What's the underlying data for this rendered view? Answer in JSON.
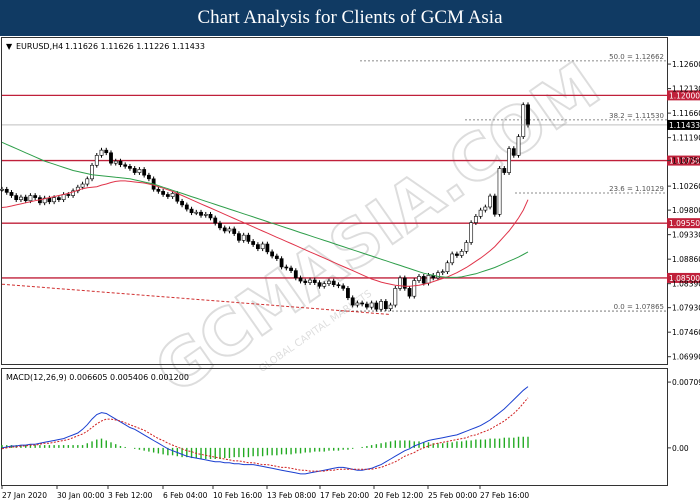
{
  "header": {
    "title": "Chart Analysis for Clients of GCM Asia"
  },
  "chart_data": {
    "type": "line",
    "symbol_label": "EURUSD,H4",
    "ohlc_text": "1.11626 1.11626 1.11226 1.11433",
    "current_price": 1.11433,
    "current_price_label": "1.11433",
    "ylim": [
      1.0685,
      1.131
    ],
    "y_ticks": [
      {
        "v": 1.12662,
        "label": ""
      },
      {
        "v": 1.126,
        "label": "1.12600"
      },
      {
        "v": 1.1213,
        "label": "1.12130"
      },
      {
        "v": 1.1166,
        "label": "1.11660"
      },
      {
        "v": 1.1153,
        "label": ""
      },
      {
        "v": 1.1119,
        "label": "1.11190"
      },
      {
        "v": 1.1075,
        "label": "1.10750"
      },
      {
        "v": 1.1026,
        "label": "1.10260"
      },
      {
        "v": 1.10129,
        "label": ""
      },
      {
        "v": 1.098,
        "label": "1.09800"
      },
      {
        "v": 1.0933,
        "label": "1.09330"
      },
      {
        "v": 1.0886,
        "label": "1.08860"
      },
      {
        "v": 1.0839,
        "label": "1.08390"
      },
      {
        "v": 1.0793,
        "label": "1.07930"
      },
      {
        "v": 1.07865,
        "label": ""
      },
      {
        "v": 1.0746,
        "label": "1.07460"
      },
      {
        "v": 1.0699,
        "label": "1.06990"
      }
    ],
    "x_labels": [
      "27 Jan 2020",
      "30 Jan 00:00",
      "3 Feb 12:00",
      "6 Feb 04:00",
      "10 Feb 16:00",
      "13 Feb 08:00",
      "17 Feb 20:00",
      "20 Feb 12:00",
      "25 Feb 00:00",
      "27 Feb 16:00"
    ],
    "horizontal_levels": [
      {
        "price": 1.12,
        "label": "1.12000",
        "kind": "resistance"
      },
      {
        "price": 1.1075,
        "label": "1.10750",
        "kind": "resistance"
      },
      {
        "price": 1.0955,
        "label": "1.09550",
        "kind": "support"
      },
      {
        "price": 1.085,
        "label": "1.08500",
        "kind": "support"
      }
    ],
    "fibonacci": [
      {
        "level": "50.0",
        "price": 1.12662,
        "label": "50.0 = 1.12662"
      },
      {
        "level": "38.2",
        "price": 1.1153,
        "label": "38.2 = 1.11530"
      },
      {
        "level": "23.6",
        "price": 1.10129,
        "label": "23.6 = 1.10129"
      },
      {
        "level": "0.0",
        "price": 1.07865,
        "label": "0.0 = 1.07865"
      }
    ],
    "series": [
      {
        "name": "",
        "kind": "close",
        "color": "#000000",
        "values": [
          1.102,
          1.1014,
          1.1008,
          1.1,
          1.1005,
          1.0998,
          1.1008,
          1.1004,
          1.0994,
          1.1003,
          1.0996,
          1.1004,
          1.1,
          1.101,
          1.1008,
          1.1017,
          1.1024,
          1.103,
          1.104,
          1.1066,
          1.1085,
          1.1095,
          1.109,
          1.107,
          1.1074,
          1.1067,
          1.1064,
          1.106,
          1.1052,
          1.1058,
          1.1047,
          1.104,
          1.102,
          1.1016,
          1.101,
          1.1006,
          1.1012,
          1.0997,
          1.099,
          1.0982,
          1.0975,
          1.0976,
          1.097,
          1.0972,
          1.0965,
          1.0955,
          1.0946,
          1.094,
          1.0944,
          1.0935,
          1.0922,
          1.0932,
          1.092,
          1.0914,
          1.0906,
          1.0915,
          1.09,
          1.0892,
          1.0887,
          1.0871,
          1.0869,
          1.0864,
          1.085,
          1.0844,
          1.0841,
          1.0846,
          1.0841,
          1.0834,
          1.0839,
          1.0844,
          1.0837,
          1.0835,
          1.083,
          1.0812,
          1.0798,
          1.0802,
          1.08,
          1.0794,
          1.0802,
          1.079,
          1.0805,
          1.0791,
          1.0798,
          1.083,
          1.085,
          1.083,
          1.0815,
          1.0845,
          1.0853,
          1.084,
          1.0855,
          1.085,
          1.086,
          1.0862,
          1.0879,
          1.0896,
          1.0893,
          1.0901,
          1.0918,
          1.0956,
          1.0968,
          1.098,
          1.0986,
          1.1007,
          1.0972,
          1.106,
          1.1052,
          1.1098,
          1.1085,
          1.1121,
          1.1182,
          1.1143
        ]
      },
      {
        "name": "",
        "kind": "ma_red",
        "color": "#e0344a",
        "values": [
          1.0985,
          1.0986,
          1.0988,
          1.099,
          1.0992,
          1.0994,
          1.0996,
          1.0998,
          1.1,
          1.1002,
          1.1004,
          1.1006,
          1.1008,
          1.101,
          1.1012,
          1.1015,
          1.1018,
          1.1021,
          1.1023,
          1.1024,
          1.1025,
          1.1028,
          1.103,
          1.1033,
          1.1035,
          1.1036,
          1.1036,
          1.1035,
          1.1034,
          1.1033,
          1.1032,
          1.103,
          1.1028,
          1.1025,
          1.1022,
          1.1019,
          1.1016,
          1.1012,
          1.1008,
          1.1004,
          1.1,
          1.0996,
          1.0992,
          1.0988,
          1.0984,
          1.098,
          1.0976,
          1.0972,
          1.0968,
          1.0964,
          1.096,
          1.0956,
          1.0952,
          1.0948,
          1.0944,
          1.094,
          1.0936,
          1.0932,
          1.0928,
          1.0924,
          1.092,
          1.0916,
          1.0912,
          1.0908,
          1.0904,
          1.09,
          1.0896,
          1.0892,
          1.0888,
          1.0884,
          1.088,
          1.0876,
          1.0872,
          1.0868,
          1.0864,
          1.086,
          1.0856,
          1.0852,
          1.0848,
          1.0845,
          1.0842,
          1.084,
          1.0838,
          1.0836,
          1.0835,
          1.0834,
          1.0834,
          1.0835,
          1.0836,
          1.0838,
          1.084,
          1.0843,
          1.0846,
          1.0849,
          1.0852,
          1.0856,
          1.086,
          1.0865,
          1.087,
          1.0876,
          1.0882,
          1.0888,
          1.0895,
          1.0902,
          1.091,
          1.092,
          1.093,
          1.094,
          1.0952,
          1.0965,
          1.098,
          1.1
        ]
      },
      {
        "name": "",
        "kind": "ma_green",
        "color": "#2e9e4a",
        "values": [
          1.111,
          1.1106,
          1.1102,
          1.1098,
          1.1094,
          1.109,
          1.1086,
          1.1082,
          1.1078,
          1.1074,
          1.1071,
          1.1068,
          1.1065,
          1.1062,
          1.1059,
          1.1056,
          1.1054,
          1.1052,
          1.105,
          1.1048,
          1.1047,
          1.1046,
          1.1045,
          1.1044,
          1.1043,
          1.1042,
          1.1041,
          1.104,
          1.1038,
          1.1036,
          1.1034,
          1.1032,
          1.103,
          1.1027,
          1.1024,
          1.1021,
          1.1018,
          1.1015,
          1.1012,
          1.1009,
          1.1006,
          1.1003,
          1.1,
          1.0997,
          1.0994,
          1.0991,
          1.0988,
          1.0985,
          1.0982,
          1.0979,
          1.0976,
          1.0973,
          1.097,
          1.0967,
          1.0964,
          1.0961,
          1.0958,
          1.0955,
          1.0952,
          1.0949,
          1.0946,
          1.0943,
          1.094,
          1.0937,
          1.0934,
          1.0931,
          1.0928,
          1.0925,
          1.0922,
          1.0919,
          1.0916,
          1.0913,
          1.091,
          1.0907,
          1.0904,
          1.0901,
          1.0898,
          1.0895,
          1.0892,
          1.0889,
          1.0886,
          1.0883,
          1.088,
          1.0877,
          1.0874,
          1.0871,
          1.0868,
          1.0865,
          1.0862,
          1.0859,
          1.0857,
          1.0855,
          1.0853,
          1.0852,
          1.0851,
          1.0851,
          1.0851,
          1.0852,
          1.0854,
          1.0856,
          1.0858,
          1.0861,
          1.0864,
          1.0867,
          1.087,
          1.0874,
          1.0878,
          1.0882,
          1.0886,
          1.089,
          1.0895,
          1.09
        ]
      },
      {
        "name": "",
        "kind": "trendline",
        "color": "#d03030",
        "dashed": true,
        "values": [
          1.0838,
          1.078
        ]
      }
    ],
    "macd": {
      "label": "MACD(12,26,9) 0.006605 0.005406 0.001200",
      "ylim": [
        -0.004,
        0.0085
      ],
      "y_ticks": [
        {
          "v": 0.00709,
          "label": "0.00709"
        },
        {
          "v": 0.0,
          "label": "0.00"
        }
      ],
      "histogram": [
        0.0003,
        0.0003,
        0.0003,
        0.0003,
        0.0003,
        0.0003,
        0.0003,
        0.0003,
        0.0003,
        0.0003,
        0.0003,
        0.0003,
        0.0003,
        0.0003,
        0.0003,
        0.0003,
        0.0003,
        0.0003,
        0.0005,
        0.0007,
        0.0009,
        0.001,
        0.0008,
        0.0006,
        0.0004,
        0.0002,
        0.0001,
        0.0,
        -0.0001,
        -0.0002,
        -0.0003,
        -0.0004,
        -0.0005,
        -0.0006,
        -0.0007,
        -0.0008,
        -0.0008,
        -0.0009,
        -0.001,
        -0.001,
        -0.0011,
        -0.0011,
        -0.0012,
        -0.0012,
        -0.0012,
        -0.0012,
        -0.0012,
        -0.0011,
        -0.0011,
        -0.001,
        -0.001,
        -0.001,
        -0.001,
        -0.0009,
        -0.0009,
        -0.0009,
        -0.0008,
        -0.0008,
        -0.0008,
        -0.0007,
        -0.0007,
        -0.0007,
        -0.0006,
        -0.0006,
        -0.0005,
        -0.0005,
        -0.0004,
        -0.0004,
        -0.0004,
        -0.0003,
        -0.0003,
        -0.0003,
        -0.0002,
        -0.0002,
        -0.0001,
        0.0,
        0.0001,
        0.0002,
        0.0003,
        0.0004,
        0.0005,
        0.0006,
        0.0007,
        0.0008,
        0.0008,
        0.0008,
        0.0008,
        0.0007,
        0.0007,
        0.0006,
        0.0006,
        0.0005,
        0.0005,
        0.0005,
        0.0006,
        0.0006,
        0.0007,
        0.0007,
        0.0008,
        0.0008,
        0.0009,
        0.0009,
        0.0009,
        0.001,
        0.001,
        0.001,
        0.0011,
        0.0011,
        0.0011,
        0.0012,
        0.0012,
        0.0012
      ],
      "macd_line": [
        0.0,
        0.0001,
        0.0002,
        0.0002,
        0.0003,
        0.0003,
        0.0004,
        0.0004,
        0.0005,
        0.0006,
        0.0007,
        0.0008,
        0.0009,
        0.001,
        0.0012,
        0.0014,
        0.0016,
        0.002,
        0.0025,
        0.0031,
        0.0036,
        0.0038,
        0.0037,
        0.0034,
        0.0031,
        0.0028,
        0.0025,
        0.0022,
        0.002,
        0.0017,
        0.0014,
        0.0011,
        0.0008,
        0.0005,
        0.0002,
        -0.0001,
        -0.0003,
        -0.0005,
        -0.0007,
        -0.0009,
        -0.001,
        -0.0011,
        -0.0012,
        -0.0013,
        -0.0014,
        -0.0015,
        -0.0015,
        -0.0016,
        -0.0016,
        -0.0017,
        -0.0017,
        -0.0018,
        -0.0018,
        -0.0018,
        -0.0019,
        -0.002,
        -0.0021,
        -0.0022,
        -0.0023,
        -0.0024,
        -0.0025,
        -0.0026,
        -0.0027,
        -0.0028,
        -0.0028,
        -0.0027,
        -0.0026,
        -0.0025,
        -0.0024,
        -0.0023,
        -0.0022,
        -0.0021,
        -0.0021,
        -0.0022,
        -0.0023,
        -0.0024,
        -0.0024,
        -0.0023,
        -0.0022,
        -0.002,
        -0.0018,
        -0.0015,
        -0.0012,
        -0.0009,
        -0.0006,
        -0.0003,
        -0.0001,
        0.0002,
        0.0004,
        0.0006,
        0.0008,
        0.0009,
        0.001,
        0.0011,
        0.0012,
        0.0013,
        0.0014,
        0.0016,
        0.0018,
        0.002,
        0.0022,
        0.0024,
        0.0027,
        0.003,
        0.0034,
        0.0038,
        0.0042,
        0.0047,
        0.0052,
        0.0057,
        0.0062,
        0.0066
      ],
      "signal_line": [
        -0.0001,
        0.0,
        0.0001,
        0.0001,
        0.0002,
        0.0002,
        0.0003,
        0.0003,
        0.0004,
        0.0005,
        0.0005,
        0.0006,
        0.0007,
        0.0008,
        0.0009,
        0.0011,
        0.0013,
        0.0015,
        0.0018,
        0.0022,
        0.0026,
        0.0029,
        0.0031,
        0.0031,
        0.003,
        0.0029,
        0.0027,
        0.0025,
        0.0023,
        0.0021,
        0.0019,
        0.0016,
        0.0013,
        0.001,
        0.0008,
        0.0005,
        0.0003,
        0.0001,
        -0.0001,
        -0.0003,
        -0.0004,
        -0.0006,
        -0.0007,
        -0.0008,
        -0.0009,
        -0.001,
        -0.0011,
        -0.0012,
        -0.0013,
        -0.0014,
        -0.0014,
        -0.0015,
        -0.0016,
        -0.0016,
        -0.0017,
        -0.0018,
        -0.0018,
        -0.0019,
        -0.002,
        -0.0021,
        -0.0021,
        -0.0022,
        -0.0023,
        -0.0024,
        -0.0024,
        -0.0025,
        -0.0025,
        -0.0025,
        -0.0025,
        -0.0024,
        -0.0024,
        -0.0023,
        -0.0023,
        -0.0023,
        -0.0023,
        -0.0023,
        -0.0023,
        -0.0023,
        -0.0023,
        -0.0022,
        -0.0021,
        -0.0019,
        -0.0017,
        -0.0015,
        -0.0012,
        -0.0009,
        -0.0007,
        -0.0005,
        -0.0002,
        0.0,
        0.0002,
        0.0004,
        0.0005,
        0.0006,
        0.0007,
        0.0008,
        0.0009,
        0.001,
        0.0011,
        0.0013,
        0.0014,
        0.0016,
        0.0018,
        0.002,
        0.0023,
        0.0026,
        0.0029,
        0.0033,
        0.0037,
        0.0042,
        0.0048,
        0.0054
      ]
    },
    "watermark": {
      "text": "GCMASIA.COM",
      "subtext": "GLOBAL CAPITAL MARKETS"
    },
    "colors": {
      "level_line": "#c0203a",
      "level_label_bg": "#c0203a",
      "current_bg": "#000000",
      "macd_line": "#1a3fd0",
      "signal_line": "#d02020",
      "histogram": "#22aa22"
    }
  }
}
